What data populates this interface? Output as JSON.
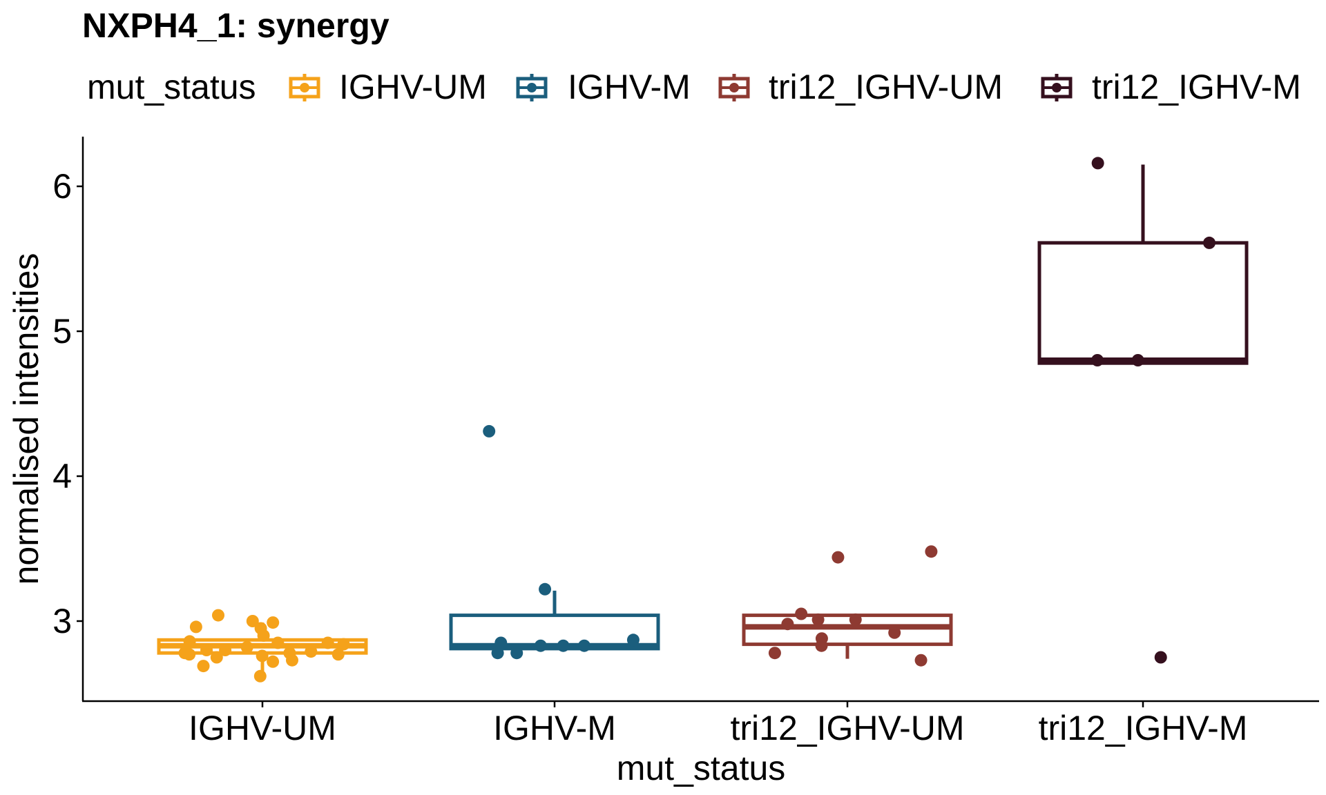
{
  "chart_data": {
    "type": "boxplot",
    "title": "NXPH4_1: synergy",
    "xlabel": "mut_status",
    "ylabel": "normalised intensities",
    "ylim": [
      2.45,
      6.35
    ],
    "yticks": [
      3,
      4,
      5,
      6
    ],
    "legend": {
      "title": "mut_status",
      "placement": "top",
      "entries": [
        "IGHV-UM",
        "IGHV-M",
        "tri12_IGHV-UM",
        "tri12_IGHV-M"
      ]
    },
    "categories": [
      "IGHV-UM",
      "IGHV-M",
      "tri12_IGHV-UM",
      "tri12_IGHV-M"
    ],
    "colors": [
      "#F5A21A",
      "#1B5E7D",
      "#8E3A32",
      "#35101E"
    ],
    "series": [
      {
        "name": "IGHV-UM",
        "box": {
          "whisker_low": 2.63,
          "q1": 2.78,
          "median": 2.83,
          "q3": 2.87,
          "whisker_high": 2.99
        },
        "points": [
          2.95,
          2.99,
          2.96,
          3.04,
          3.0,
          2.9,
          2.86,
          2.85,
          2.85,
          2.82,
          2.8,
          2.79,
          2.78,
          2.77,
          2.76,
          2.75,
          2.73,
          2.69,
          2.72,
          2.62,
          2.8,
          2.78,
          2.77,
          2.84
        ]
      },
      {
        "name": "IGHV-M",
        "box": {
          "whisker_low": 2.81,
          "q1": 2.81,
          "median": 2.83,
          "q3": 3.04,
          "whisker_high": 3.21
        },
        "points": [
          4.31,
          3.22,
          2.87,
          2.85,
          2.83,
          2.83,
          2.83,
          2.78,
          2.78
        ]
      },
      {
        "name": "tri12_IGHV-UM",
        "box": {
          "whisker_low": 2.74,
          "q1": 2.84,
          "median": 2.96,
          "q3": 3.04,
          "whisker_high": 3.04
        },
        "points": [
          3.48,
          3.44,
          3.05,
          3.01,
          3.01,
          2.98,
          2.92,
          2.88,
          2.83,
          2.78,
          2.73
        ]
      },
      {
        "name": "tri12_IGHV-M",
        "box": {
          "whisker_low": 4.78,
          "q1": 4.78,
          "median": 4.8,
          "q3": 5.61,
          "whisker_high": 6.15
        },
        "points": [
          6.16,
          5.61,
          4.8,
          4.8,
          2.75
        ]
      }
    ]
  }
}
